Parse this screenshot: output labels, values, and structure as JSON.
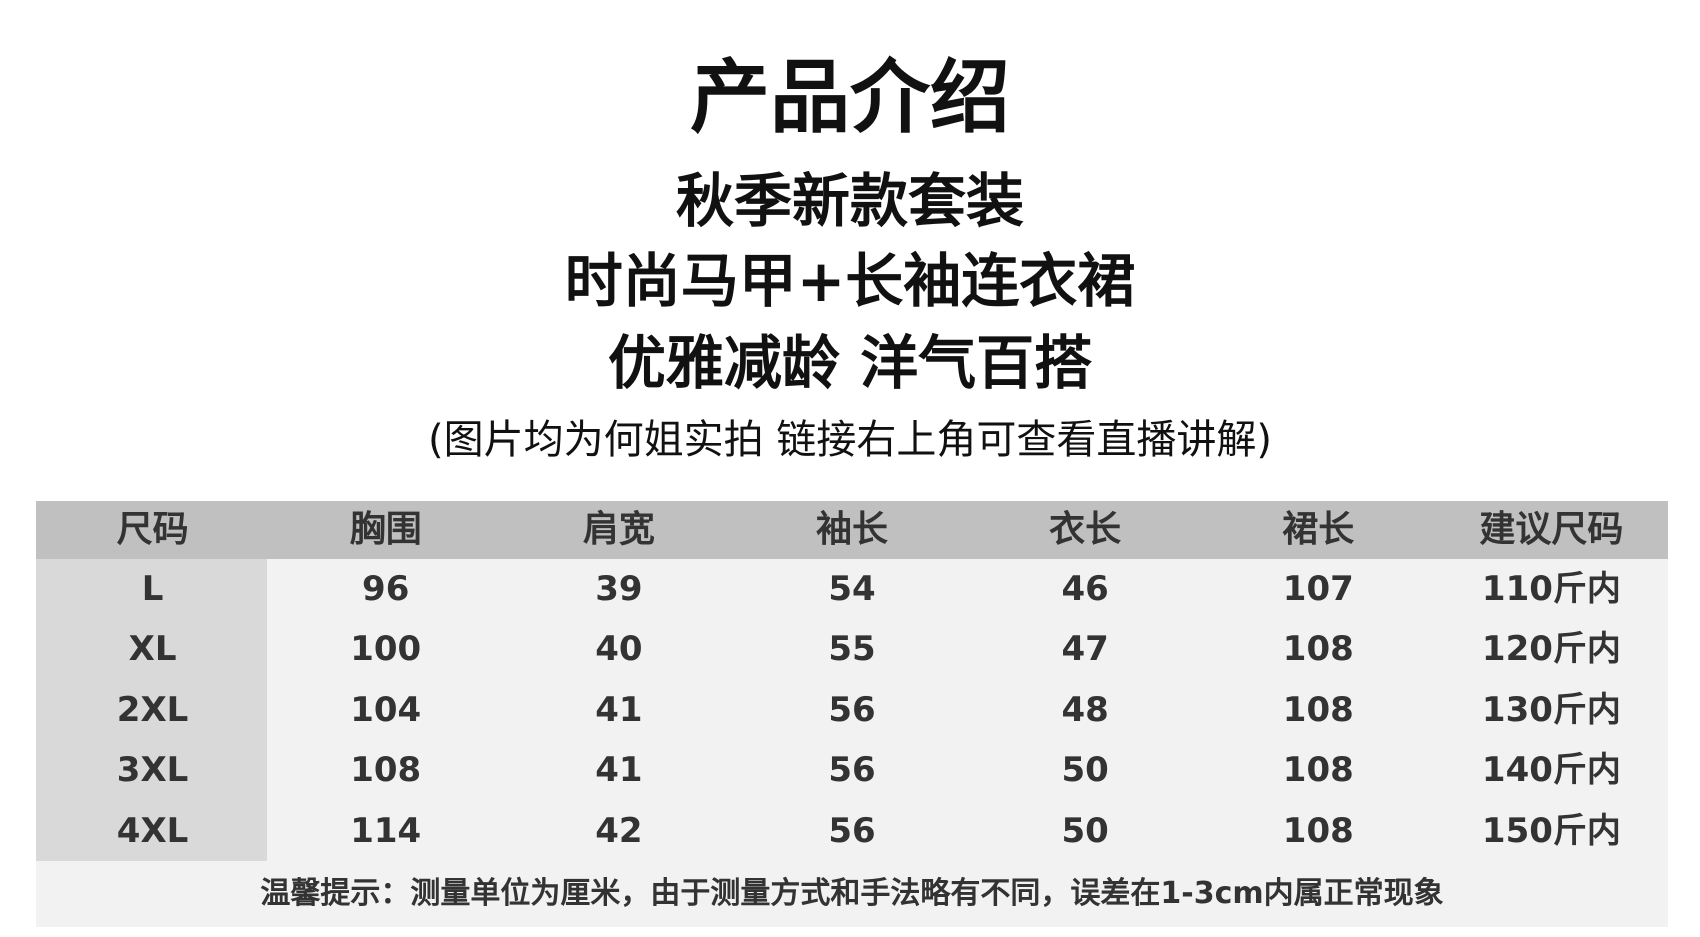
{
  "title": "产品介绍",
  "lines": [
    "秋季新款套装",
    "时尚马甲+长袖连衣裙",
    "优雅减龄 洋气百搭"
  ],
  "note": "(图片均为何姐实拍 链接右上角可查看直播讲解)",
  "table": {
    "headers": [
      "尺码",
      "胸围",
      "肩宽",
      "袖长",
      "衣长",
      "裙长",
      "建议尺码"
    ],
    "rows": [
      [
        "L",
        "96",
        "39",
        "54",
        "46",
        "107",
        "110斤内"
      ],
      [
        "XL",
        "100",
        "40",
        "55",
        "47",
        "108",
        "120斤内"
      ],
      [
        "2XL",
        "104",
        "41",
        "56",
        "48",
        "108",
        "130斤内"
      ],
      [
        "3XL",
        "108",
        "41",
        "56",
        "50",
        "108",
        "140斤内"
      ],
      [
        "4XL",
        "114",
        "42",
        "56",
        "50",
        "108",
        "150斤内"
      ]
    ],
    "footer": "温馨提示：测量单位为厘米，由于测量方式和手法略有不同，误差在1-3cm内属正常现象"
  }
}
